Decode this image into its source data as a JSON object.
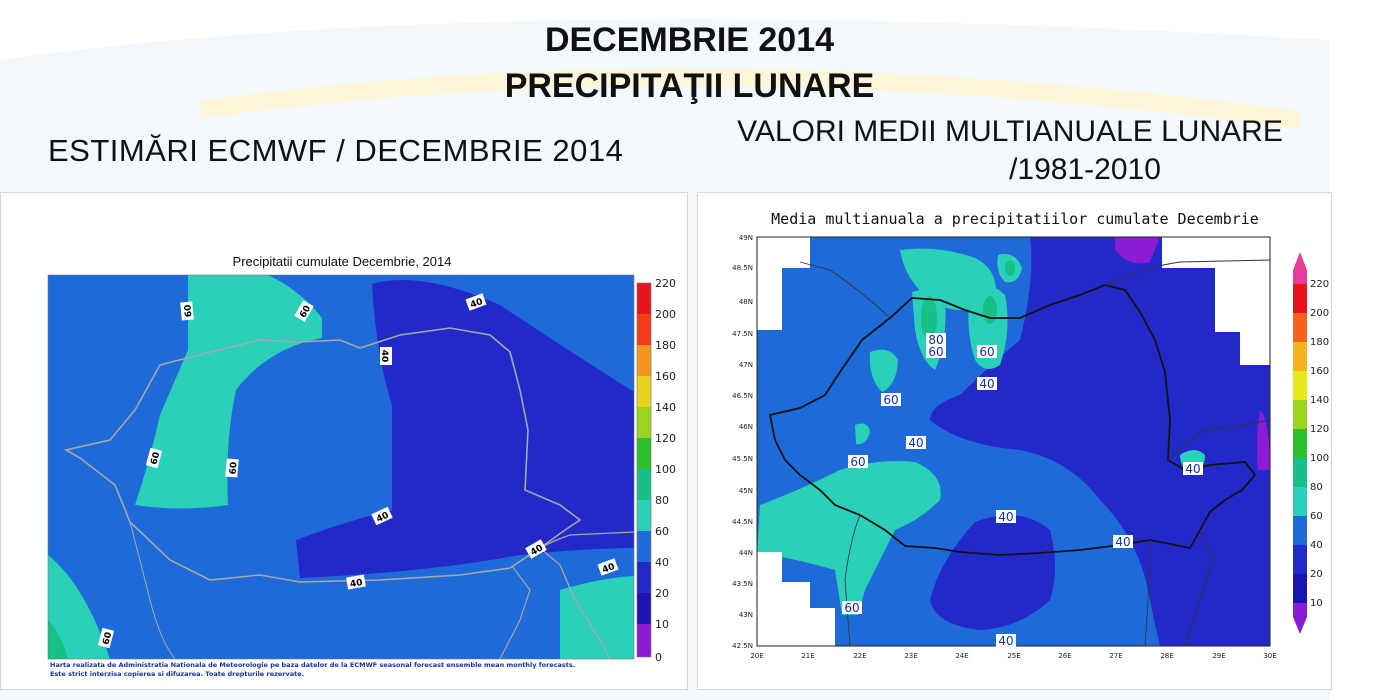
{
  "titles": {
    "line1": "DECEMBRIE 2014",
    "line2": "PRECIPITAŢII LUNARE",
    "left_subtitle": "ESTIMĂRI ECMWF / DECEMBRIE 2014",
    "right_subtitle_line1": "VALORI MEDII MULTIANUALE LUNARE",
    "right_subtitle_line2": "/1981-2010"
  },
  "left_map": {
    "title": "Precipitatii cumulate Decembrie, 2014",
    "colorbar": [
      "0",
      "10",
      "20",
      "40",
      "60",
      "80",
      "100",
      "120",
      "140",
      "160",
      "180",
      "200",
      "220"
    ],
    "contour_labels": [
      "40",
      "40",
      "40",
      "40",
      "40",
      "40",
      "60",
      "60",
      "60",
      "60",
      "60",
      "60"
    ],
    "footnote_line1": "Harta realizata de Administratia Nationala de Meteorologie pe baza datelor de la ECMWF seasonal forecast ensemble mean monthly forecasts.",
    "footnote_line2": "Este strict interzisa copierea si difuzarea. Toate drepturile rezervate."
  },
  "right_map": {
    "title": "Media multianuala a precipitatiilor cumulate Decembrie",
    "lat_ticks": [
      "49N",
      "48.5N",
      "48N",
      "47.5N",
      "47N",
      "46.5N",
      "46N",
      "45.5N",
      "45N",
      "44.5N",
      "44N",
      "43.5N",
      "43N",
      "42.5N"
    ],
    "lon_ticks": [
      "20E",
      "21E",
      "22E",
      "23E",
      "24E",
      "25E",
      "26E",
      "27E",
      "28E",
      "29E",
      "30E"
    ],
    "colorbar": [
      "10",
      "20",
      "40",
      "60",
      "80",
      "100",
      "120",
      "140",
      "160",
      "180",
      "200",
      "220"
    ],
    "contour_labels": [
      "80",
      "60",
      "60",
      "40",
      "60",
      "40",
      "60",
      "40",
      "40",
      "40",
      "60",
      "40"
    ]
  },
  "colors": {
    "c20_40": "#2229c8",
    "c40_60": "#1d6ad8",
    "c60_80": "#2bd0b8",
    "c80_100": "#18c088",
    "c10_20": "#8a1cd6"
  }
}
